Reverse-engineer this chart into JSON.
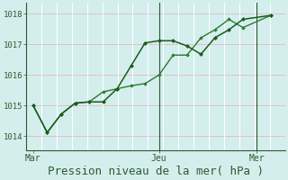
{
  "background_color": "#d4eeee",
  "grid_color_h": "#e0c0c0",
  "grid_color_v": "#ffffff",
  "line_color1": "#1a5c1a",
  "line_color2": "#2d7a2d",
  "title": "Pression niveau de la mer( hPa )",
  "title_fontsize": 9,
  "ylim": [
    1013.55,
    1018.35
  ],
  "yticks": [
    1014,
    1015,
    1016,
    1017,
    1018
  ],
  "xtick_labels": [
    "Mar",
    "Jeu",
    "Mer"
  ],
  "xtick_positions": [
    0,
    9,
    16
  ],
  "vline_positions": [
    9,
    16
  ],
  "num_vgrid": 18,
  "series1_x": [
    0,
    1,
    2,
    3,
    4,
    5,
    6,
    7,
    8,
    9,
    10,
    11,
    12,
    13,
    14,
    15,
    17
  ],
  "series1_y": [
    1015.0,
    1014.12,
    1014.72,
    1015.08,
    1015.12,
    1015.12,
    1015.55,
    1016.3,
    1017.05,
    1017.12,
    1017.12,
    1016.95,
    1016.68,
    1017.22,
    1017.48,
    1017.82,
    1017.95
  ],
  "series2_x": [
    0,
    1,
    2,
    3,
    4,
    5,
    6,
    7,
    8,
    9,
    10,
    11,
    12,
    13,
    14,
    15,
    17
  ],
  "series2_y": [
    1015.0,
    1014.12,
    1014.72,
    1015.08,
    1015.12,
    1015.45,
    1015.55,
    1015.65,
    1015.72,
    1016.0,
    1016.65,
    1016.65,
    1017.22,
    1017.48,
    1017.82,
    1017.55,
    1017.95
  ],
  "figsize": [
    3.2,
    2.0
  ],
  "dpi": 100
}
